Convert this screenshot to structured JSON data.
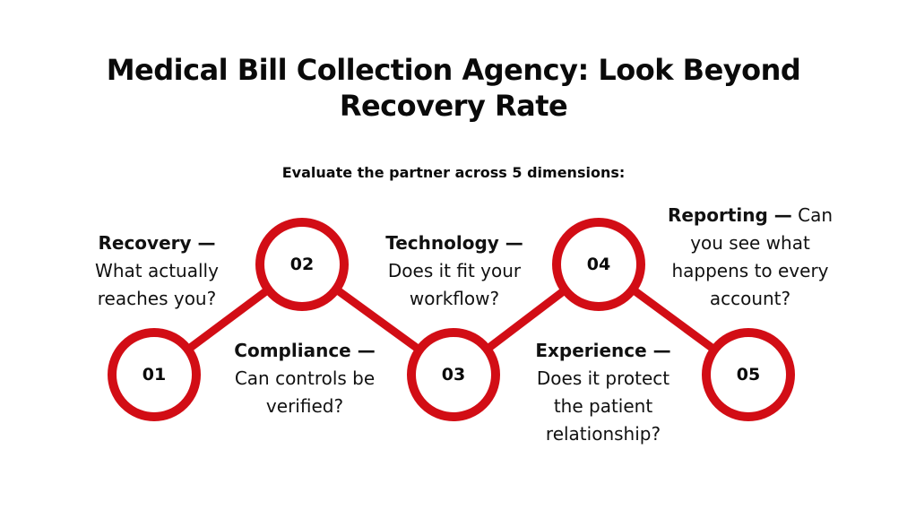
{
  "title_line1": "Medical Bill Collection Agency: Look Beyond",
  "title_line2": "Recovery Rate",
  "subtitle": "Evaluate the partner across 5 dimensions:",
  "accent_color": "#d20d15",
  "steps": [
    {
      "number": "01",
      "label": "Recovery —",
      "text": "What actually reaches you?"
    },
    {
      "number": "02",
      "label": "Compliance —",
      "text": "Can controls be verified?"
    },
    {
      "number": "03",
      "label": "Technology —",
      "text": "Does it fit your workflow?"
    },
    {
      "number": "04",
      "label": "Experience —",
      "text": "Does it protect the patient relationship?"
    },
    {
      "number": "05",
      "label": "Reporting —",
      "text": "Can you see what happens to every account?"
    }
  ]
}
